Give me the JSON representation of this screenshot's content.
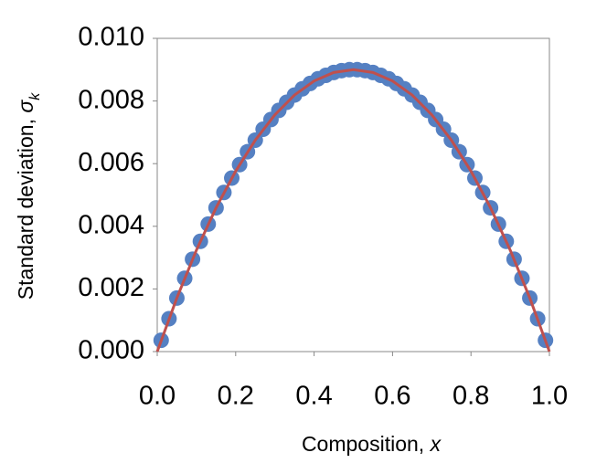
{
  "chart_data": {
    "type": "scatter",
    "x_label": "Composition, ",
    "x_label_symbol": "x",
    "y_label": "Standard deviation, ",
    "y_label_symbol": "σ",
    "y_label_subscript": "k",
    "xlim": [
      0,
      1
    ],
    "ylim": [
      0,
      0.01
    ],
    "xticks": [
      {
        "value": 0,
        "label": "0.0"
      },
      {
        "value": 0.2,
        "label": "0.2"
      },
      {
        "value": 0.4,
        "label": "0.4"
      },
      {
        "value": 0.6,
        "label": "0.6"
      },
      {
        "value": 0.8,
        "label": "0.8"
      },
      {
        "value": 1,
        "label": "1.0"
      }
    ],
    "yticks": [
      {
        "value": 0,
        "label": "0.000"
      },
      {
        "value": 0.002,
        "label": "0.002"
      },
      {
        "value": 0.004,
        "label": "0.004"
      },
      {
        "value": 0.006,
        "label": "0.006"
      },
      {
        "value": 0.008,
        "label": "0.008"
      },
      {
        "value": 0.01,
        "label": "0.010"
      }
    ],
    "series": [
      {
        "type": "scatter",
        "color": "#5580c2",
        "x": [
          0.01,
          0.03,
          0.05,
          0.07,
          0.09,
          0.11,
          0.13,
          0.15,
          0.17,
          0.19,
          0.21,
          0.23,
          0.25,
          0.27,
          0.29,
          0.31,
          0.33,
          0.35,
          0.37,
          0.39,
          0.41,
          0.43,
          0.45,
          0.47,
          0.49,
          0.51,
          0.53,
          0.55,
          0.57,
          0.59,
          0.61,
          0.63,
          0.65,
          0.67,
          0.69,
          0.71,
          0.73,
          0.75,
          0.77,
          0.79,
          0.81,
          0.83,
          0.85,
          0.87,
          0.89,
          0.91,
          0.93,
          0.95,
          0.97,
          0.99
        ],
        "values": [
          0.00036,
          0.00105,
          0.00171,
          0.00234,
          0.00295,
          0.00352,
          0.00407,
          0.00459,
          0.00508,
          0.00554,
          0.00597,
          0.00638,
          0.00675,
          0.0071,
          0.00741,
          0.0077,
          0.00796,
          0.00819,
          0.00839,
          0.00856,
          0.00871,
          0.00882,
          0.00891,
          0.00897,
          0.009,
          0.009,
          0.00897,
          0.00891,
          0.00882,
          0.00871,
          0.00856,
          0.00839,
          0.00819,
          0.00796,
          0.0077,
          0.00741,
          0.0071,
          0.00675,
          0.00638,
          0.00597,
          0.00554,
          0.00508,
          0.00459,
          0.00407,
          0.00352,
          0.00295,
          0.00234,
          0.00171,
          0.00105,
          0.00036
        ]
      },
      {
        "type": "line",
        "color": "#c0504d",
        "x": [
          0,
          0.05,
          0.1,
          0.15,
          0.2,
          0.25,
          0.3,
          0.35,
          0.4,
          0.45,
          0.5,
          0.55,
          0.6,
          0.65,
          0.7,
          0.75,
          0.8,
          0.85,
          0.9,
          0.95,
          1
        ],
        "values": [
          0,
          0.00171,
          0.00324,
          0.00459,
          0.00576,
          0.00675,
          0.00756,
          0.00819,
          0.00864,
          0.00891,
          0.009,
          0.00891,
          0.00864,
          0.00819,
          0.00756,
          0.00675,
          0.00576,
          0.00459,
          0.00324,
          0.00171,
          0
        ]
      }
    ]
  }
}
